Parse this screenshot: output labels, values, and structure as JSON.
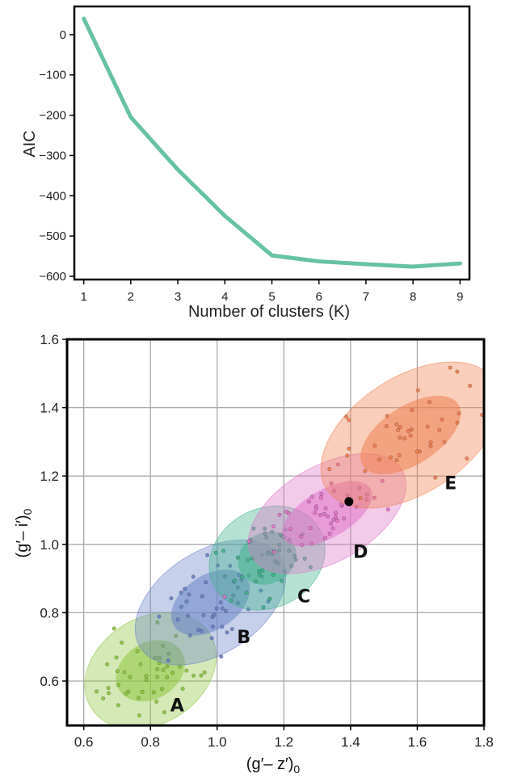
{
  "chart_data": [
    {
      "type": "line",
      "title": "",
      "xlabel": "Number of clusters (K)",
      "ylabel": "AIC",
      "x": [
        1,
        2,
        3,
        4,
        5,
        6,
        7,
        8,
        9
      ],
      "series": [
        {
          "values": [
            40,
            -205,
            -335,
            -450,
            -548,
            -563,
            -570,
            -576,
            -568
          ],
          "color": "#66c2a5"
        }
      ],
      "xticks": [
        "1",
        "2",
        "3",
        "4",
        "5",
        "6",
        "7",
        "8",
        "9"
      ],
      "yticks": [
        "0",
        "−100",
        "−200",
        "−300",
        "−400",
        "−500",
        "−600"
      ],
      "ytick_values": [
        0,
        -100,
        -200,
        -300,
        -400,
        -500,
        -600
      ],
      "xlim": [
        0.8,
        9.2
      ],
      "ylim": [
        -608,
        70
      ],
      "grid": false
    },
    {
      "type": "scatter",
      "title": "",
      "xlabel_main": "(g′– z′)",
      "xlabel_sub": "0",
      "ylabel_main": "(g′– i′)",
      "ylabel_sub": "0",
      "xlim": [
        0.55,
        1.8
      ],
      "ylim": [
        0.47,
        1.6
      ],
      "xticks": [
        "0.6",
        "0.8",
        "1.0",
        "1.2",
        "1.4",
        "1.6",
        "1.8"
      ],
      "xtick_values": [
        0.6,
        0.8,
        1.0,
        1.2,
        1.4,
        1.6,
        1.8
      ],
      "yticks": [
        "0.6",
        "0.8",
        "1.0",
        "1.2",
        "1.4",
        "1.6"
      ],
      "ytick_values": [
        0.6,
        0.8,
        1.0,
        1.2,
        1.4,
        1.6
      ],
      "grid": true,
      "clusters": [
        {
          "label": "A",
          "color": "#8ec63f",
          "center": [
            0.8,
            0.63
          ],
          "inner": [
            0.11,
            0.082
          ],
          "outer": [
            0.21,
            0.155
          ],
          "angle": 32,
          "label_pos": [
            0.88,
            0.53
          ]
        },
        {
          "label": "B",
          "color": "#6a83c8",
          "center": [
            0.98,
            0.83
          ],
          "inner": [
            0.13,
            0.08
          ],
          "outer": [
            0.25,
            0.15
          ],
          "angle": 33,
          "label_pos": [
            1.08,
            0.73
          ]
        },
        {
          "label": "C",
          "color": "#3fb38b",
          "center": [
            1.15,
            0.96
          ],
          "inner": [
            0.09,
            0.075
          ],
          "outer": [
            0.18,
            0.145
          ],
          "angle": 28,
          "label_pos": [
            1.26,
            0.85
          ]
        },
        {
          "label": "D",
          "color": "#e075c8",
          "center": [
            1.33,
            1.09
          ],
          "inner": [
            0.15,
            0.07
          ],
          "outer": [
            0.26,
            0.14
          ],
          "angle": 30,
          "label_pos": [
            1.43,
            0.98
          ]
        },
        {
          "label": "E",
          "color": "#f08050",
          "center": [
            1.58,
            1.32
          ],
          "inner": [
            0.17,
            0.085
          ],
          "outer": [
            0.3,
            0.17
          ],
          "angle": 33,
          "label_pos": [
            1.7,
            1.18
          ]
        }
      ],
      "highlight_point": [
        1.395,
        1.125
      ],
      "highlight_color": "#000000"
    }
  ]
}
